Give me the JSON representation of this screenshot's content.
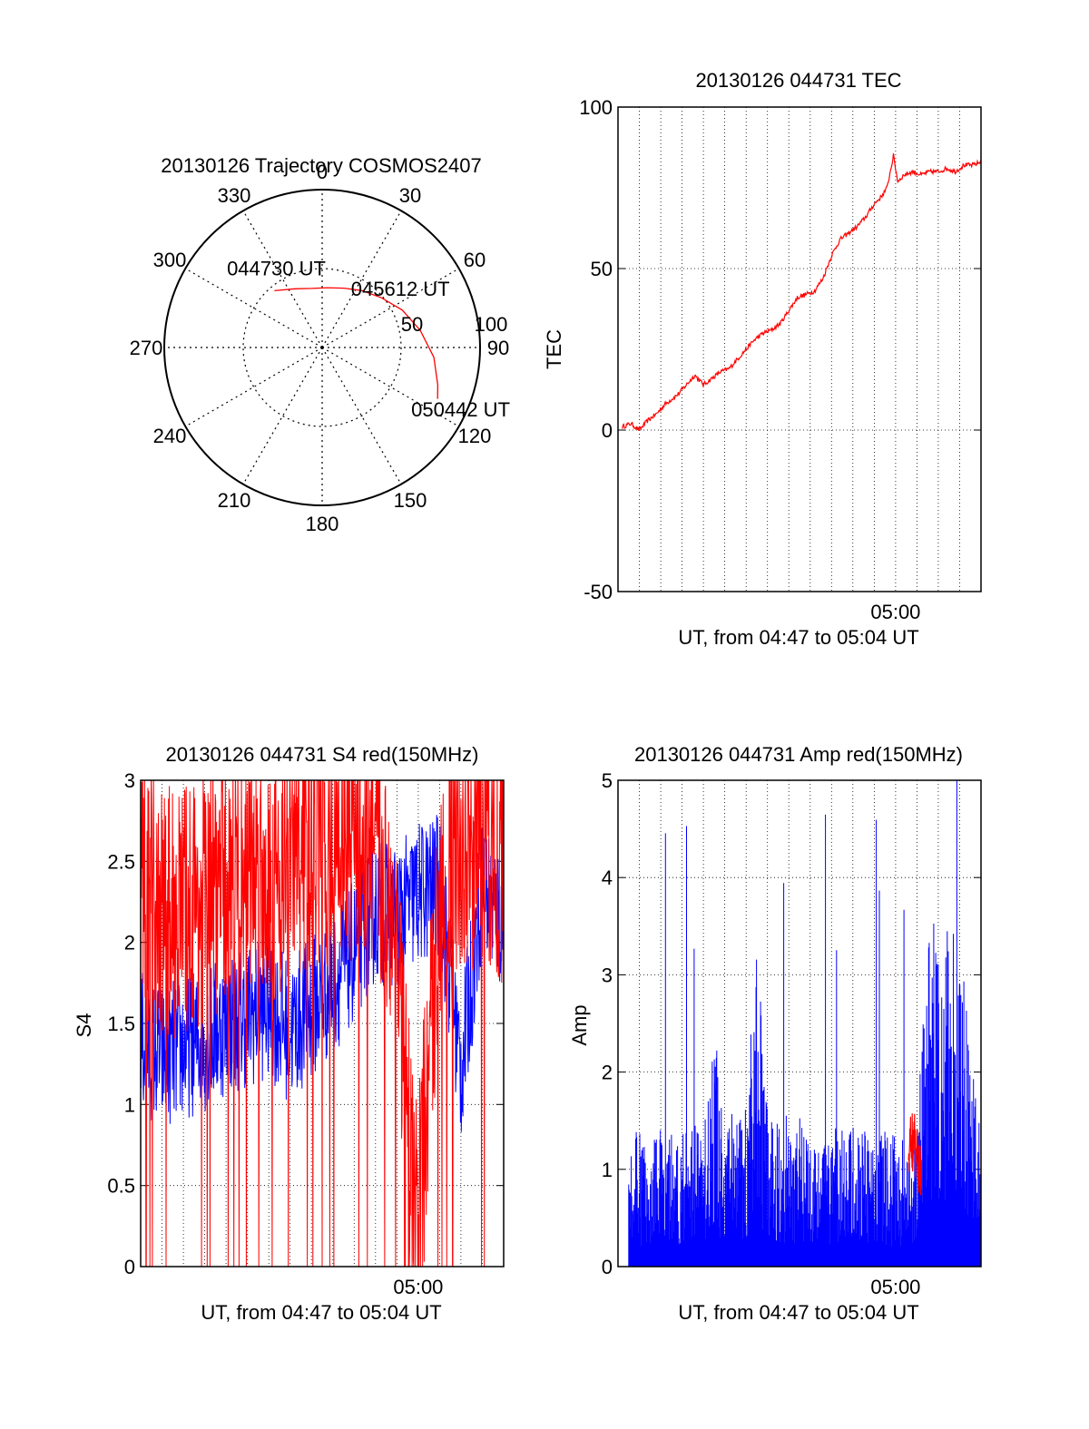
{
  "colors": {
    "red": "#ff0000",
    "blue": "#0000ff",
    "axis": "#000000",
    "grid": "#000000",
    "background": "#ffffff"
  },
  "chart_data": [
    {
      "type": "polar",
      "title": "20130126 Trajectory COSMOS2407",
      "azimuth_ticks": [
        "0",
        "30",
        "60",
        "90",
        "120",
        "150",
        "180",
        "210",
        "240",
        "270",
        "300",
        "330"
      ],
      "azimuth_values": [
        0,
        30,
        60,
        90,
        120,
        150,
        180,
        210,
        240,
        270,
        300,
        330
      ],
      "radial_ticks": [
        "50",
        "100"
      ],
      "radial_values": [
        50,
        100
      ],
      "trajectory": {
        "color": "#ff0000",
        "points": [
          {
            "az": 320,
            "el_offset": 47
          },
          {
            "az": 335,
            "el_offset": 41
          },
          {
            "az": 350,
            "el_offset": 38
          },
          {
            "az": 5,
            "el_offset": 38
          },
          {
            "az": 20,
            "el_offset": 40
          },
          {
            "az": 35,
            "el_offset": 44
          },
          {
            "az": 50,
            "el_offset": 49
          },
          {
            "az": 65,
            "el_offset": 56
          },
          {
            "az": 80,
            "el_offset": 63
          },
          {
            "az": 95,
            "el_offset": 71
          },
          {
            "az": 108,
            "el_offset": 77
          },
          {
            "az": 114,
            "el_offset": 80
          }
        ]
      },
      "annotations": [
        {
          "text": "044730 UT",
          "az": 330,
          "el_offset": 58
        },
        {
          "text": "045612 UT",
          "az": 53,
          "el_offset": 62
        },
        {
          "text": "050442 UT",
          "az": 114,
          "el_offset": 96
        }
      ]
    },
    {
      "type": "line",
      "title": "20130126 044731 TEC",
      "ylabel": "TEC",
      "xlabel": "UT, from 04:47 to 05:04 UT",
      "xlim": [
        0,
        17
      ],
      "ylim": [
        -50,
        100
      ],
      "yticks": [
        "100",
        "50",
        "0",
        "-50"
      ],
      "ytick_values": [
        100,
        50,
        0,
        -50
      ],
      "xticks": [
        "05:00"
      ],
      "xtick_values": [
        13
      ],
      "grid": true,
      "series": [
        {
          "color": "#ff0000",
          "x": [
            0.2,
            0.6,
            1.0,
            1.4,
            1.8,
            2.2,
            2.8,
            3.2,
            3.6,
            4.0,
            4.4,
            4.8,
            5.2,
            5.6,
            6.0,
            6.4,
            6.8,
            7.2,
            7.6,
            8.0,
            8.4,
            8.8,
            9.2,
            9.6,
            10.0,
            10.4,
            10.8,
            11.2,
            11.6,
            12.0,
            12.3,
            12.6,
            12.9,
            13.1,
            13.4,
            13.8,
            14.2,
            14.6,
            15.0,
            15.4,
            15.8,
            16.2,
            16.6,
            17.0
          ],
          "y": [
            1,
            2,
            0,
            3,
            5,
            8,
            11,
            14,
            17,
            14,
            16,
            18,
            19,
            22,
            25,
            28,
            30,
            31,
            33,
            37,
            41,
            42,
            43,
            47,
            54,
            59,
            61,
            63,
            66,
            70,
            72,
            75,
            85,
            77,
            79,
            80,
            79,
            80,
            80,
            81,
            80,
            82,
            82,
            83
          ]
        }
      ]
    },
    {
      "type": "line",
      "title": "20130126 044731 S4 red(150MHz)",
      "ylabel": "S4",
      "xlabel": "UT, from 04:47 to 05:04 UT",
      "xlim": [
        0,
        17
      ],
      "ylim": [
        0,
        3
      ],
      "yticks": [
        "3",
        "2.5",
        "2",
        "1.5",
        "1",
        "0.5",
        "0"
      ],
      "ytick_values": [
        3,
        2.5,
        2,
        1.5,
        1,
        0.5,
        0
      ],
      "xticks": [
        "05:00"
      ],
      "xtick_values": [
        13
      ],
      "grid": true,
      "series": [
        {
          "color": "#0000ff",
          "noisy": true,
          "x": [
            0,
            1,
            2,
            3,
            4,
            5,
            6,
            7,
            8,
            9,
            10,
            11,
            12,
            13,
            14,
            15,
            16,
            17
          ],
          "y": [
            1.4,
            1.3,
            1.35,
            1.4,
            1.5,
            1.55,
            1.6,
            1.45,
            1.6,
            1.75,
            1.95,
            2.2,
            2.15,
            2.3,
            2.35,
            1.2,
            2.35,
            2.1
          ]
        },
        {
          "color": "#ff0000",
          "noisy": true,
          "x": [
            0,
            1,
            2,
            3,
            4,
            5,
            6,
            7,
            8,
            9,
            10,
            11,
            12,
            12.5,
            13,
            13.5,
            14,
            15,
            16,
            17
          ],
          "y": [
            2.3,
            2.2,
            2.2,
            2.3,
            2.4,
            2.5,
            2.4,
            2.5,
            2.6,
            2.6,
            2.7,
            2.6,
            2.0,
            0.8,
            0.3,
            1.2,
            2.3,
            2.6,
            2.6,
            2.5
          ]
        }
      ]
    },
    {
      "type": "bar",
      "title": "20130126 044731 Amp red(150MHz)",
      "ylabel": "Amp",
      "xlabel": "UT, from 04:47 to 05:04 UT",
      "xlim": [
        0,
        17
      ],
      "ylim": [
        0,
        5
      ],
      "yticks": [
        "5",
        "4",
        "3",
        "2",
        "1",
        "0"
      ],
      "ytick_values": [
        5,
        4,
        3,
        2,
        1,
        0
      ],
      "xticks": [
        "05:00"
      ],
      "xtick_values": [
        13
      ],
      "grid": true,
      "series": [
        {
          "color": "#0000ff",
          "noisy": true,
          "x": [
            0.5,
            1,
            2,
            3,
            4,
            4.5,
            5,
            6,
            6.5,
            7,
            8,
            9,
            10,
            11,
            12,
            13,
            14,
            14.4,
            15,
            16,
            17
          ],
          "y": [
            1.1,
            1.05,
            1.1,
            1.1,
            1.15,
            1.9,
            1.2,
            1.25,
            2.6,
            1.2,
            1.2,
            1.15,
            1.1,
            1.1,
            1.1,
            1.05,
            1.0,
            2.5,
            2.9,
            2.6,
            1.0
          ]
        },
        {
          "color": "#ff0000",
          "noisy": true,
          "x": [
            13.6,
            13.8,
            14.0,
            14.2
          ],
          "y": [
            1.2,
            1.3,
            1.1,
            1.0
          ]
        }
      ]
    }
  ]
}
